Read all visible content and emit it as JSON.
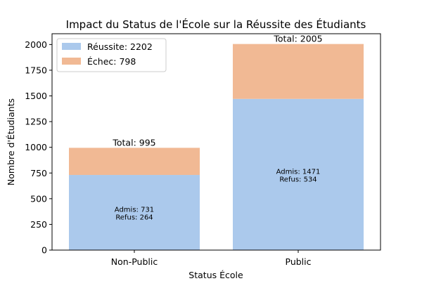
{
  "chart_data": {
    "type": "bar",
    "stacked": true,
    "title": "Impact du Status de l'École sur la Réussite des Étudiants",
    "xlabel": "Status École",
    "ylabel": "Nombre d'Étudiants",
    "categories": [
      "Non-Public",
      "Public"
    ],
    "series": [
      {
        "name": "Réussite: 2202",
        "values": [
          731,
          1471
        ],
        "color": "#abc9ec"
      },
      {
        "name": "Échec: 798",
        "values": [
          264,
          534
        ],
        "color": "#f1b994"
      }
    ],
    "totals": [
      995,
      2005
    ],
    "total_labels": [
      "Total: 995",
      "Total: 2005"
    ],
    "inner_labels": [
      [
        "Admis: 731",
        "Refus: 264"
      ],
      [
        "Admis: 1471",
        "Refus: 534"
      ]
    ],
    "ylim": [
      0,
      2105
    ],
    "yticks": [
      0,
      250,
      500,
      750,
      1000,
      1250,
      1500,
      1750,
      2000
    ],
    "legend_position": "top-left",
    "grid": false
  }
}
